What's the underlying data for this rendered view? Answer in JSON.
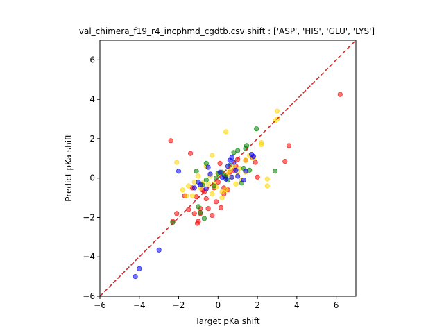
{
  "chart_data": {
    "type": "scatter",
    "title": "val_chimera_f19_r4_incphmd_cgdtb.csv shift : ['ASP', 'HIS', 'GLU', 'LYS']",
    "xlabel": "Target pKa shift",
    "ylabel": "Predict pKa shift",
    "xlim": [
      -6,
      7
    ],
    "ylim": [
      -6,
      7
    ],
    "xticks": [
      -6,
      -4,
      -2,
      0,
      2,
      4,
      6
    ],
    "yticks": [
      -6,
      -4,
      -2,
      0,
      2,
      4,
      6
    ],
    "xtick_labels": [
      "−6",
      "−4",
      "−2",
      "0",
      "2",
      "4",
      "6"
    ],
    "ytick_labels": [
      "−6",
      "−4",
      "−2",
      "0",
      "2",
      "4",
      "6"
    ],
    "reference_line": {
      "from": [
        -6,
        -6
      ],
      "to": [
        7,
        7
      ],
      "color": "#d62728",
      "style": "dashed"
    },
    "grid": false,
    "series": [
      {
        "color": "#ff0000",
        "points": [
          [
            6.2,
            4.25
          ],
          [
            3.6,
            1.65
          ],
          [
            3.4,
            0.85
          ],
          [
            2.0,
            0.05
          ],
          [
            1.9,
            0.8
          ],
          [
            1.75,
            1.05
          ],
          [
            1.4,
            0.9
          ],
          [
            1.0,
            0.95
          ],
          [
            0.9,
            0.6
          ],
          [
            0.8,
            0.4
          ],
          [
            0.6,
            0.3
          ],
          [
            0.4,
            0.1
          ],
          [
            0.3,
            -0.5
          ],
          [
            0.1,
            0.75
          ],
          [
            0.0,
            -0.2
          ],
          [
            -0.1,
            -1.2
          ],
          [
            0.15,
            -1.5
          ],
          [
            -0.3,
            -1.9
          ],
          [
            -0.5,
            -1.55
          ],
          [
            -0.6,
            -1.05
          ],
          [
            -0.7,
            -0.7
          ],
          [
            -0.8,
            -0.6
          ],
          [
            -0.9,
            -1.55
          ],
          [
            -0.9,
            -1.8
          ],
          [
            -1.0,
            -2.2
          ],
          [
            -1.05,
            -2.3
          ],
          [
            -1.2,
            -1.8
          ],
          [
            -1.1,
            -0.95
          ],
          [
            -1.3,
            -0.5
          ],
          [
            -1.5,
            -1.6
          ],
          [
            -1.7,
            -0.9
          ],
          [
            -2.1,
            -1.8
          ],
          [
            -2.3,
            -2.2
          ],
          [
            -2.4,
            1.9
          ],
          [
            -1.4,
            1.25
          ],
          [
            0.3,
            -0.8
          ],
          [
            -0.2,
            -0.5
          ],
          [
            0.5,
            -0.6
          ]
        ]
      },
      {
        "color": "#ffd700",
        "points": [
          [
            3.0,
            3.4
          ],
          [
            3.0,
            3.0
          ],
          [
            2.9,
            2.9
          ],
          [
            2.5,
            -0.05
          ],
          [
            2.5,
            -0.4
          ],
          [
            2.2,
            1.8
          ],
          [
            2.2,
            1.7
          ],
          [
            1.8,
            1.0
          ],
          [
            1.6,
            1.15
          ],
          [
            1.4,
            0.9
          ],
          [
            1.4,
            0.3
          ],
          [
            1.2,
            -0.1
          ],
          [
            1.0,
            0.3
          ],
          [
            0.8,
            0.6
          ],
          [
            0.6,
            0.4
          ],
          [
            0.5,
            0.2
          ],
          [
            0.4,
            2.35
          ],
          [
            0.4,
            -0.6
          ],
          [
            0.2,
            -0.7
          ],
          [
            0.0,
            0.2
          ],
          [
            -0.1,
            -0.45
          ],
          [
            -0.2,
            -0.3
          ],
          [
            -0.3,
            1.15
          ],
          [
            -0.4,
            0.1
          ],
          [
            -0.5,
            -0.3
          ],
          [
            -0.6,
            0.6
          ],
          [
            -0.8,
            -0.25
          ],
          [
            -0.9,
            -0.5
          ],
          [
            -1.0,
            0.1
          ],
          [
            -1.2,
            -0.2
          ],
          [
            -1.3,
            -0.9
          ],
          [
            -1.5,
            -0.4
          ],
          [
            -1.6,
            -0.9
          ],
          [
            -1.8,
            -0.6
          ],
          [
            -2.1,
            0.8
          ],
          [
            0.2,
            -1.0
          ],
          [
            0.7,
            0.05
          ],
          [
            1.1,
            0.5
          ],
          [
            -0.3,
            -0.8
          ],
          [
            0.9,
            -0.3
          ]
        ]
      },
      {
        "color": "#008000",
        "points": [
          [
            2.9,
            0.35
          ],
          [
            1.95,
            2.5
          ],
          [
            1.45,
            1.65
          ],
          [
            1.4,
            1.5
          ],
          [
            1.3,
            0.5
          ],
          [
            1.2,
            -0.25
          ],
          [
            1.0,
            1.4
          ],
          [
            0.8,
            1.3
          ],
          [
            0.6,
            0.65
          ],
          [
            0.4,
            0.05
          ],
          [
            0.2,
            0.3
          ],
          [
            0.0,
            0.25
          ],
          [
            -0.1,
            0.0
          ],
          [
            -0.2,
            -0.4
          ],
          [
            -0.6,
            -0.1
          ],
          [
            -0.8,
            -0.35
          ],
          [
            -1.0,
            -1.45
          ],
          [
            -1.1,
            0.35
          ],
          [
            -0.9,
            -1.75
          ],
          [
            -0.7,
            -2.05
          ],
          [
            -0.6,
            0.75
          ],
          [
            -2.3,
            -2.25
          ],
          [
            0.5,
            -0.1
          ],
          [
            1.6,
            0.4
          ],
          [
            0.3,
            0.15
          ]
        ]
      },
      {
        "color": "#0000ff",
        "points": [
          [
            -4.2,
            -5.0
          ],
          [
            -4.0,
            -4.6
          ],
          [
            -3.0,
            -3.65
          ],
          [
            -2.0,
            0.35
          ],
          [
            -1.2,
            -0.5
          ],
          [
            -1.0,
            -0.2
          ],
          [
            -0.9,
            -0.35
          ],
          [
            -0.6,
            -0.55
          ],
          [
            -0.5,
            0.55
          ],
          [
            -0.4,
            0.2
          ],
          [
            0.1,
            0.3
          ],
          [
            0.2,
            0.05
          ],
          [
            0.4,
            -0.05
          ],
          [
            0.5,
            0.6
          ],
          [
            0.6,
            0.9
          ],
          [
            0.7,
            1.05
          ],
          [
            0.8,
            0.8
          ],
          [
            0.9,
            0.4
          ],
          [
            1.0,
            0.1
          ],
          [
            1.3,
            -0.1
          ],
          [
            1.7,
            1.2
          ],
          [
            1.8,
            1.1
          ],
          [
            0.7,
            0.05
          ],
          [
            1.4,
            0.35
          ]
        ]
      }
    ]
  }
}
